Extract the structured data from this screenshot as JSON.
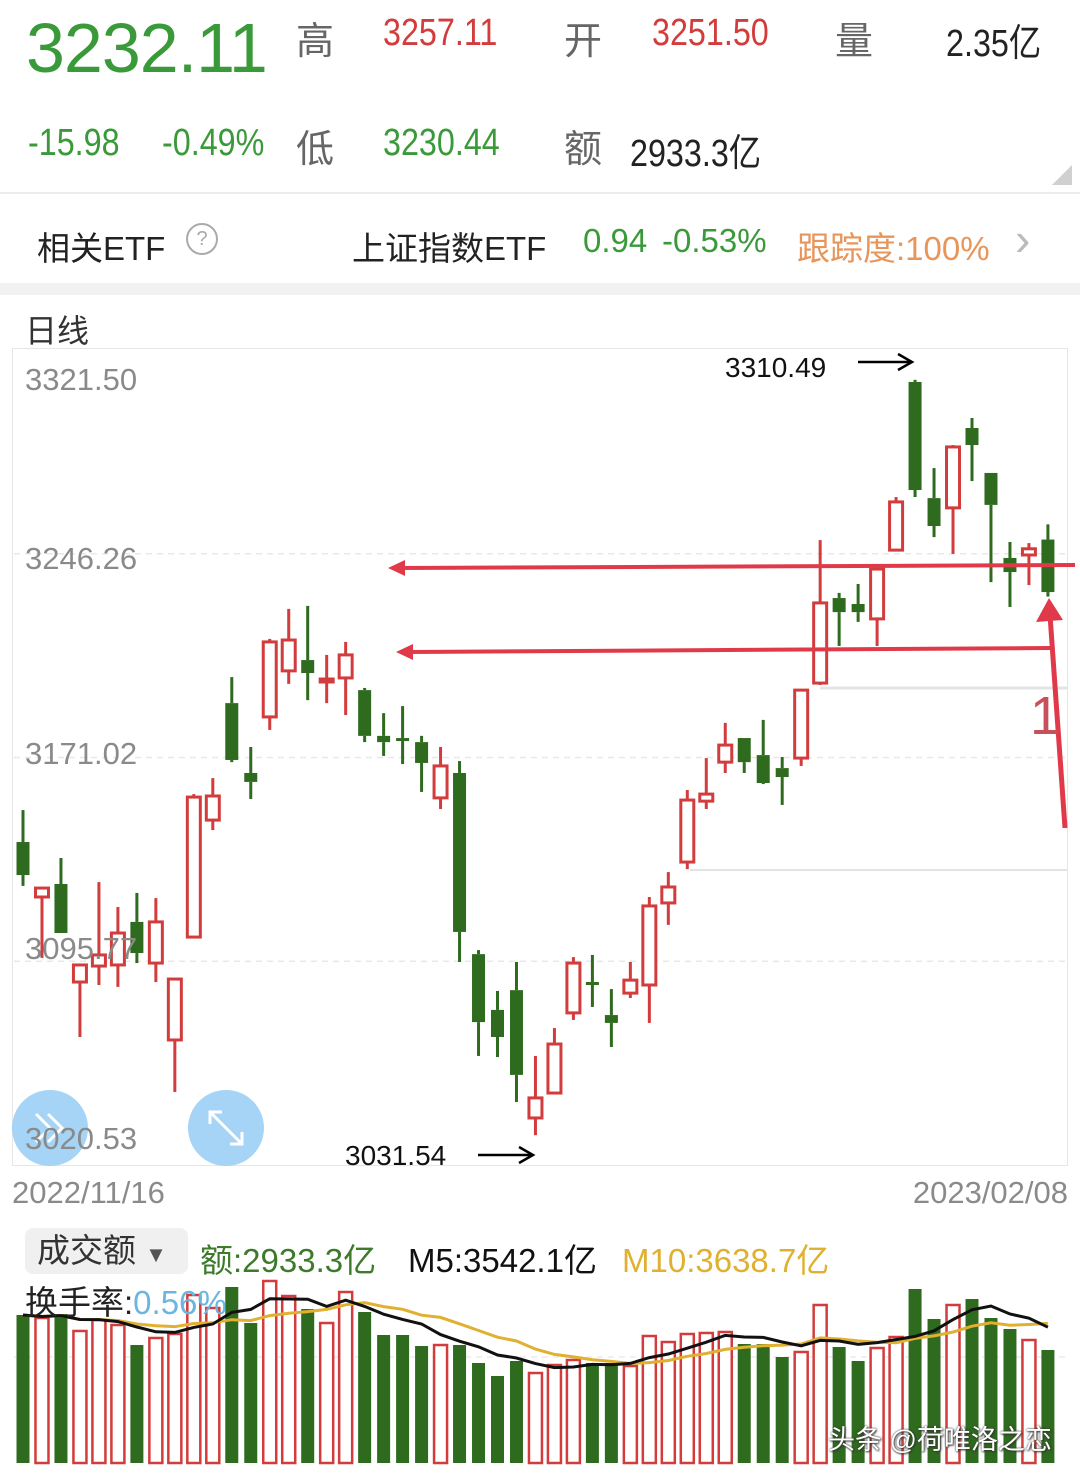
{
  "quote": {
    "price": "3232.11",
    "change": "-15.98",
    "change_pct": "-0.49%",
    "high_label": "高",
    "high": "3257.11",
    "open_label": "开",
    "open": "3251.50",
    "volume_label": "量",
    "volume": "2.35亿",
    "low_label": "低",
    "low": "3230.44",
    "amount_label": "额",
    "amount": "2933.3亿"
  },
  "etf": {
    "label": "相关ETF",
    "help_icon": "?",
    "name": "上证指数ETF",
    "price": "0.94",
    "change_pct": "-0.53%",
    "tracking": "跟踪度:100%",
    "chevron": "›"
  },
  "colors": {
    "up": "#d23c3c",
    "down": "#2f6b1e",
    "ma5": "#111111",
    "ma10": "#e0b030",
    "annotation": "#e03a4a"
  },
  "period_label": "日线",
  "volume_panel": {
    "selector": "成交额",
    "amount": "额:2933.3亿",
    "m5": "M5:3542.1亿",
    "m10": "M10:3638.7亿",
    "turnover_label": "换手率:",
    "turnover": "0.56%"
  },
  "annotations": {
    "high_marker": "3310.49",
    "low_marker": "3031.54",
    "note": "1"
  },
  "watermark": "头条 @荷唯洛之恋",
  "chart_data": {
    "type": "candlestick",
    "period": "日线",
    "y_ticks": [
      "3321.50",
      "3246.26",
      "3171.02",
      "3095.77",
      "3020.53"
    ],
    "ylim": [
      3020.53,
      3321.5
    ],
    "x_start": "2022/11/16",
    "x_end": "2023/02/08",
    "grid": true,
    "ohlc_fields": [
      "open",
      "high",
      "low",
      "close"
    ],
    "candles": [
      [
        3139.8,
        3151.6,
        3123.6,
        3127.6
      ],
      [
        3119.5,
        3122.8,
        3097.0,
        3122.8
      ],
      [
        3124.3,
        3133.9,
        3106.2,
        3106.2
      ],
      [
        3088.1,
        3094.4,
        3067.8,
        3094.4
      ],
      [
        3094.0,
        3125.0,
        3087.0,
        3098.1
      ],
      [
        3094.4,
        3115.8,
        3086.3,
        3106.2
      ],
      [
        3110.3,
        3121.0,
        3095.1,
        3098.8
      ],
      [
        3095.1,
        3119.1,
        3088.1,
        3110.3
      ],
      [
        3066.7,
        3089.2,
        3047.5,
        3089.2
      ],
      [
        3104.7,
        3157.5,
        3104.7,
        3156.4
      ],
      [
        3147.9,
        3163.4,
        3144.2,
        3156.8
      ],
      [
        3191.1,
        3200.7,
        3169.3,
        3170.1
      ],
      [
        3165.3,
        3174.9,
        3155.7,
        3162.0
      ],
      [
        3186.0,
        3214.8,
        3181.2,
        3213.7
      ],
      [
        3203.0,
        3225.9,
        3198.2,
        3214.4
      ],
      [
        3207.0,
        3227.0,
        3192.2,
        3202.2
      ],
      [
        3199.3,
        3208.9,
        3191.1,
        3200.0
      ],
      [
        3200.4,
        3213.7,
        3186.7,
        3208.9
      ],
      [
        3195.9,
        3196.7,
        3176.7,
        3179.0
      ],
      [
        3179.0,
        3187.4,
        3171.6,
        3176.7
      ],
      [
        3178.2,
        3190.0,
        3168.6,
        3177.1
      ],
      [
        3176.7,
        3179.0,
        3158.3,
        3169.0
      ],
      [
        3156.1,
        3174.9,
        3152.0,
        3167.9
      ],
      [
        3165.3,
        3169.7,
        3095.5,
        3106.6
      ],
      [
        3098.4,
        3099.9,
        3060.8,
        3073.3
      ],
      [
        3077.8,
        3084.8,
        3060.4,
        3067.8
      ],
      [
        3085.1,
        3095.5,
        3043.8,
        3053.8
      ],
      [
        3037.9,
        3060.8,
        3031.54,
        3045.3
      ],
      [
        3047.1,
        3071.1,
        3047.1,
        3065.2
      ],
      [
        3076.7,
        3097.3,
        3074.1,
        3095.1
      ],
      [
        3088.1,
        3098.1,
        3078.9,
        3087.4
      ],
      [
        3075.9,
        3085.5,
        3064.1,
        3073.0
      ],
      [
        3084.0,
        3095.5,
        3082.2,
        3088.8
      ],
      [
        3087.0,
        3119.5,
        3073.0,
        3116.2
      ],
      [
        3117.3,
        3128.7,
        3109.2,
        3123.2
      ],
      [
        3132.4,
        3159.0,
        3129.8,
        3155.3
      ],
      [
        3154.9,
        3170.8,
        3152.0,
        3157.5
      ],
      [
        3169.3,
        3183.8,
        3165.3,
        3175.6
      ],
      [
        3178.2,
        3178.2,
        3165.3,
        3169.3
      ],
      [
        3171.9,
        3184.9,
        3161.2,
        3161.6
      ],
      [
        3167.1,
        3171.2,
        3153.5,
        3163.8
      ],
      [
        3170.8,
        3195.9,
        3167.9,
        3195.9
      ],
      [
        3198.5,
        3251.3,
        3197.8,
        3228.1
      ],
      [
        3229.9,
        3231.8,
        3212.2,
        3224.7
      ],
      [
        3227.7,
        3235.1,
        3221.1,
        3224.7
      ],
      [
        3222.2,
        3240.6,
        3212.2,
        3240.6
      ],
      [
        3247.6,
        3267.2,
        3247.6,
        3265.4
      ],
      [
        3309.7,
        3310.49,
        3267.2,
        3269.8
      ],
      [
        3266.8,
        3277.9,
        3252.4,
        3256.5
      ],
      [
        3263.2,
        3286.4,
        3246.2,
        3285.7
      ],
      [
        3292.7,
        3296.4,
        3273.1,
        3286.4
      ],
      [
        3276.1,
        3276.1,
        3235.8,
        3264.3
      ],
      [
        3244.7,
        3250.6,
        3226.6,
        3239.5
      ],
      [
        3245.8,
        3250.2,
        3234.7,
        3248.09
      ],
      [
        3251.5,
        3257.11,
        3230.44,
        3232.11
      ]
    ],
    "volume_unit": "亿",
    "volumes": [
      3842,
      3764,
      3868,
      3427,
      3712,
      3582,
      3063,
      3245,
      3349,
      4361,
      4024,
      4569,
      3634,
      4725,
      4335,
      3998,
      3634,
      4439,
      3920,
      3323,
      3323,
      3037,
      3063,
      3063,
      2596,
      2259,
      2648,
      2336,
      2544,
      2674,
      2596,
      2596,
      2518,
      3297,
      3141,
      3349,
      3375,
      3401,
      3089,
      3089,
      2752,
      2882,
      4102,
      3011,
      2648,
      2985,
      3271,
      4517,
      3738,
      4102,
      4257,
      3764,
      3479,
      3193,
      2933.3
    ],
    "volume_ma": [
      "M5",
      "M10"
    ]
  }
}
